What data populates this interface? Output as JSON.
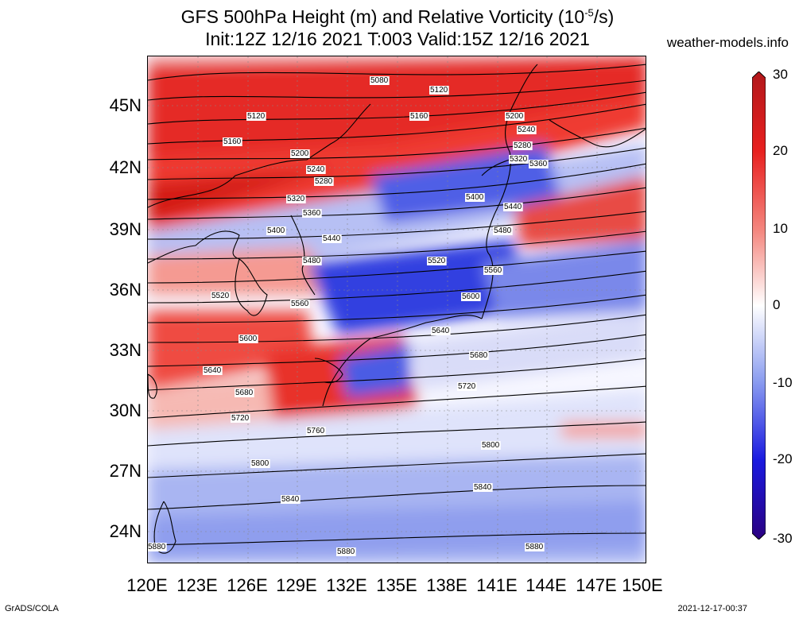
{
  "title": {
    "line1": "GFS 500hPa Height (m) and Relative Vorticity (10",
    "line1_exp": "-5",
    "line1_end": "/s)",
    "line2": "Init:12Z 12/16 2021 T:003 Valid:15Z 12/16 2021"
  },
  "site": "weather-models.info",
  "footer": {
    "left": "GrADS/COLA",
    "right": "2021-12-17-00:37"
  },
  "map": {
    "lat_labels": [
      "45N",
      "42N",
      "39N",
      "36N",
      "33N",
      "30N",
      "27N",
      "24N"
    ],
    "lon_labels": [
      "120E",
      "123E",
      "126E",
      "129E",
      "132E",
      "135E",
      "138E",
      "141E",
      "144E",
      "147E",
      "150E"
    ],
    "contour_labels": [
      "5080",
      "5120",
      "5120",
      "5160",
      "5160",
      "5200",
      "5200",
      "5240",
      "5240",
      "5280",
      "5280",
      "5320",
      "5320",
      "5360",
      "5360",
      "5400",
      "5400",
      "5440",
      "5440",
      "5480",
      "5480",
      "5520",
      "5520",
      "5560",
      "5560",
      "5600",
      "5600",
      "5640",
      "5640",
      "5680",
      "5680",
      "5720",
      "5720",
      "5760",
      "5800",
      "5800",
      "5840",
      "5840",
      "5880",
      "5880",
      "5880"
    ]
  },
  "colorbar": {
    "labels": [
      "30",
      "20",
      "10",
      "0",
      "-10",
      "-20",
      "-30"
    ],
    "colors": [
      "#b2181b",
      "#e8201f",
      "#f4877f",
      "#ffffff",
      "#8c9ef0",
      "#1a1ae0",
      "#2b0080"
    ]
  }
}
